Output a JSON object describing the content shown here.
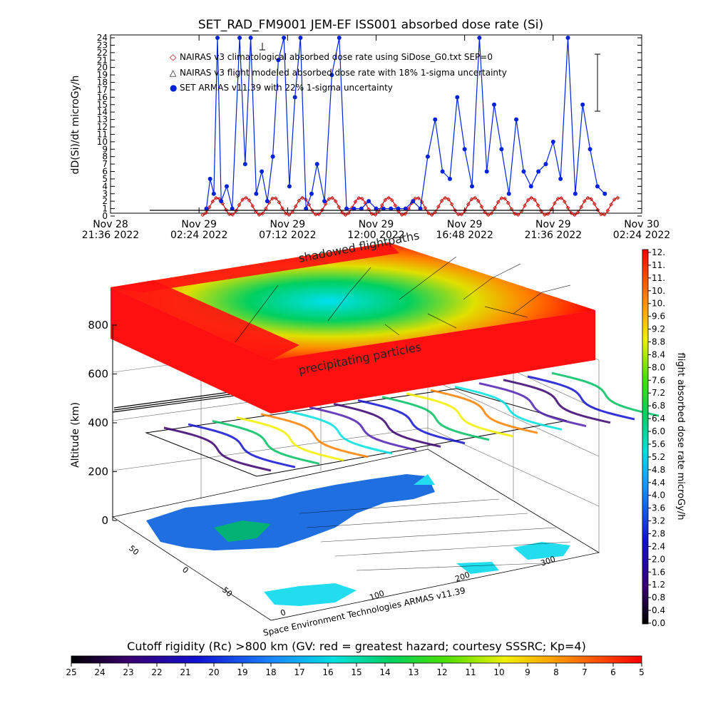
{
  "chart_data": [
    {
      "type": "line",
      "title": "SET_RAD_FM9001  JEM-EF ISS001 absorbed dose rate (Si)",
      "ylabel": "dD(Si)/dt microGy/h",
      "xlabel": "",
      "ylim": [
        0,
        24
      ],
      "y_ticks": [
        "0",
        "1",
        "2",
        "3",
        "4",
        "5",
        "6",
        "7",
        "8",
        "9",
        "10",
        "11",
        "12",
        "13",
        "14",
        "15",
        "16",
        "17",
        "18",
        "19",
        "20",
        "21",
        "22",
        "23",
        "24"
      ],
      "x_ticks": [
        {
          "line1": "Nov 28",
          "line2": "21:36 2022"
        },
        {
          "line1": "Nov 29",
          "line2": "02:24 2022"
        },
        {
          "line1": "Nov 29",
          "line2": "07:12 2022"
        },
        {
          "line1": "Nov 29",
          "line2": "12:00 2022"
        },
        {
          "line1": "Nov 29",
          "line2": "16:48 2022"
        },
        {
          "line1": "Nov 29",
          "line2": "21:36 2022"
        },
        {
          "line1": "Nov 30",
          "line2": "02:24 2022"
        }
      ],
      "x_range_hours": [
        0,
        28.8
      ],
      "legend": [
        {
          "symbol": "◇",
          "label": "NAIRAS v3 climatological absorbed dose rate using SiDose_G0.txt SEP=0",
          "color": "#cc0000"
        },
        {
          "symbol": "△",
          "label": "NAIRAS v3 flight modeled absorbed dose rate with 18% 1-sigma uncertainty",
          "color": "#000000"
        },
        {
          "symbol": "●",
          "label": "SET ARMAS v11.39 with 22% 1-sigma uncertainty",
          "color": "#0022dd"
        }
      ],
      "series": [
        {
          "name": "NAIRAS v3 climatological absorbed dose rate using SiDose_G0.txt SEP=0",
          "color": "#cc0000",
          "pattern": "orbital oscillation 0.2–2.6",
          "period_hours": 1.55
        },
        {
          "name": "SET ARMAS v11.39 with 22% 1-sigma uncertainty",
          "color": "#0022dd",
          "x_hours": [
            5.2,
            5.4,
            5.6,
            5.8,
            6.0,
            6.3,
            6.6,
            7.0,
            7.3,
            7.6,
            7.9,
            8.2,
            8.5,
            8.8,
            9.1,
            9.4,
            9.7,
            10.0,
            10.3,
            10.6,
            10.9,
            11.2,
            11.6,
            12.0,
            12.4,
            12.8,
            13.2,
            13.6,
            14.0,
            14.4,
            14.8,
            15.2,
            15.6,
            16.0,
            16.4,
            16.8,
            17.2,
            17.6,
            18.0,
            18.4,
            18.8,
            19.2,
            19.6,
            20.0,
            20.4,
            20.8,
            21.2,
            21.6,
            22.0,
            22.4,
            22.8,
            23.2,
            23.6,
            24.0,
            24.4,
            24.8,
            25.2,
            25.6,
            26.0,
            26.4,
            26.8
          ],
          "values": [
            1,
            5,
            3,
            24,
            2,
            4,
            1,
            24,
            7,
            24,
            3,
            6,
            2,
            8,
            21,
            24,
            4,
            16,
            24,
            1,
            3,
            7,
            2,
            19,
            24,
            1,
            1,
            1,
            2,
            1,
            1,
            1,
            1,
            1,
            2,
            1,
            8,
            13,
            6,
            5,
            16,
            9,
            4,
            24,
            6,
            15,
            9,
            3,
            13,
            6,
            4,
            6,
            7,
            10,
            5,
            24,
            3,
            15,
            9,
            4,
            3
          ]
        },
        {
          "name": "NAIRAS v3 flight modeled absorbed dose rate with 18% 1-sigma uncertainty",
          "color": "#000000",
          "x_hours": [
            5.0,
            27.5
          ],
          "values": [
            0,
            0
          ]
        }
      ],
      "grid": false
    },
    {
      "type": "heatmap",
      "title": "",
      "zlabel": "Altitude (km)",
      "z_ticks": [
        "0",
        "200",
        "400",
        "600",
        "800"
      ],
      "x_ticks": [
        "0",
        "100",
        "200",
        "300"
      ],
      "y_ticks": [
        "-50",
        "0",
        "50"
      ],
      "annotations": [
        "shadowed flightpaths",
        "precipitating particles"
      ],
      "credit": "Space Environment Technologies ARMAS v11.39"
    }
  ],
  "colorbar_right": {
    "label": "flight absorbed dose rate microGy/h",
    "ticks": [
      "12.",
      "11.",
      "11.",
      "10.",
      "10.",
      "9.6",
      "9.2",
      "8.8",
      "8.4",
      "8.0",
      "7.6",
      "7.2",
      "6.8",
      "6.4",
      "6.0",
      "5.6",
      "5.2",
      "4.8",
      "4.4",
      "4.0",
      "3.6",
      "3.2",
      "2.8",
      "2.4",
      "2.0",
      "1.6",
      "1.2",
      "0.8",
      "0.4",
      "0.0"
    ]
  },
  "colorbar_bottom": {
    "title": "Cutoff rigidity (Rc) >800 km (GV: red = greatest hazard; courtesy SSSRC; Kp=4)",
    "ticks": [
      "25",
      "24",
      "23",
      "22",
      "21",
      "20",
      "19",
      "18",
      "17",
      "16",
      "15",
      "14",
      "13",
      "12",
      "11",
      "10",
      "9",
      "8",
      "7",
      "6",
      "5"
    ]
  },
  "colors": {
    "data_blue": "#0022dd",
    "model_red": "#cc0000",
    "ocean": "#22ddee",
    "land": "#1f6fe0"
  }
}
